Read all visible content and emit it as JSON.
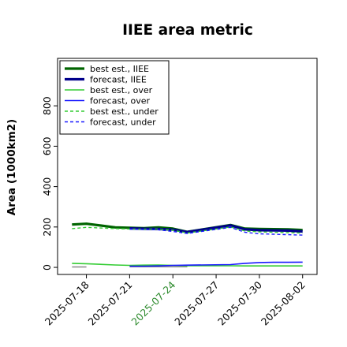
{
  "chart_data": {
    "type": "line",
    "title": "IIEE area metric",
    "ylabel": "Area (1000km2)",
    "xlabel": "",
    "ylim": [
      -35,
      1035
    ],
    "xlim": [
      "2025-07-16",
      "2025-08-03"
    ],
    "yticks": [
      0,
      200,
      400,
      600,
      800
    ],
    "ytick_labels": [
      "0",
      "200",
      "400",
      "600",
      "800"
    ],
    "xticks": [
      "2025-07-18",
      "2025-07-21",
      "2025-07-24",
      "2025-07-27",
      "2025-07-30",
      "2025-08-02"
    ],
    "xtick_labels": [
      "2025-07-18",
      "2025-07-21",
      "2025-07-24",
      "2025-07-27",
      "2025-07-30",
      "2025-08-02"
    ],
    "highlight_xtick": "2025-07-24",
    "highlight_color": "#2e8b2e",
    "grid": false,
    "legend_position": "top-left",
    "series": [
      {
        "name": "best est., IIEE",
        "color": "#006400",
        "width": 3.2,
        "dash": "",
        "x": [
          "2025-07-17",
          "2025-07-18",
          "2025-07-20",
          "2025-07-21",
          "2025-07-22",
          "2025-07-23",
          "2025-07-24",
          "2025-07-25",
          "2025-07-28",
          "2025-07-29",
          "2025-07-30",
          "2025-07-31",
          "2025-08-01",
          "2025-08-02"
        ],
        "y": [
          212,
          216,
          198,
          196,
          194,
          198,
          192,
          176,
          210,
          192,
          190,
          189,
          188,
          185
        ]
      },
      {
        "name": "forecast, IIEE",
        "color": "#00008b",
        "width": 3.2,
        "dash": "",
        "x": [
          "2025-07-21",
          "2025-07-22",
          "2025-07-23",
          "2025-07-24",
          "2025-07-25",
          "2025-07-28",
          "2025-07-29",
          "2025-07-30",
          "2025-07-31",
          "2025-08-01",
          "2025-08-02"
        ],
        "y": [
          193,
          191,
          190,
          187,
          175,
          208,
          188,
          184,
          183,
          182,
          178
        ]
      },
      {
        "name": "best est., over",
        "color": "#33cc33",
        "width": 1.6,
        "dash": "",
        "x": [
          "2025-07-17",
          "2025-07-18",
          "2025-07-20",
          "2025-07-21",
          "2025-07-22",
          "2025-07-23",
          "2025-07-24",
          "2025-07-25",
          "2025-07-28",
          "2025-07-29",
          "2025-07-30",
          "2025-07-31",
          "2025-08-01",
          "2025-08-02"
        ],
        "y": [
          20,
          18,
          12,
          10,
          11,
          12,
          10,
          8,
          8,
          7,
          7,
          7,
          7,
          7
        ]
      },
      {
        "name": "forecast, over",
        "color": "#1a1aff",
        "width": 1.6,
        "dash": "",
        "x": [
          "2025-07-21",
          "2025-07-22",
          "2025-07-23",
          "2025-07-24",
          "2025-07-25",
          "2025-07-28",
          "2025-07-29",
          "2025-07-30",
          "2025-07-31",
          "2025-08-01",
          "2025-08-02"
        ],
        "y": [
          6,
          6,
          7,
          10,
          11,
          14,
          20,
          24,
          25,
          25,
          26
        ]
      },
      {
        "name": "best est., under",
        "color": "#33cc33",
        "width": 1.4,
        "dash": "4,3",
        "x": [
          "2025-07-17",
          "2025-07-18",
          "2025-07-20",
          "2025-07-21",
          "2025-07-22",
          "2025-07-23",
          "2025-07-24",
          "2025-07-25",
          "2025-07-28",
          "2025-07-29",
          "2025-07-30",
          "2025-07-31",
          "2025-08-01",
          "2025-08-02"
        ],
        "y": [
          192,
          198,
          192,
          190,
          189,
          190,
          184,
          170,
          200,
          180,
          176,
          174,
          172,
          170
        ]
      },
      {
        "name": "forecast, under",
        "color": "#1a1aff",
        "width": 1.4,
        "dash": "4,3",
        "x": [
          "2025-07-21",
          "2025-07-22",
          "2025-07-23",
          "2025-07-24",
          "2025-07-25",
          "2025-07-28",
          "2025-07-29",
          "2025-07-30",
          "2025-07-31",
          "2025-08-01",
          "2025-08-02"
        ],
        "y": [
          190,
          188,
          186,
          178,
          168,
          198,
          174,
          166,
          164,
          162,
          160
        ]
      }
    ],
    "extra_series": [
      {
        "color": "#888888",
        "width": 1.4,
        "dash": "",
        "x": [
          "2025-07-17",
          "2025-07-18"
        ],
        "y": [
          2,
          2
        ]
      },
      {
        "color": "#888888",
        "width": 1.4,
        "dash": "",
        "x": [
          "2025-07-21",
          "2025-07-22",
          "2025-07-23",
          "2025-07-24",
          "2025-07-25"
        ],
        "y": [
          3,
          3,
          3,
          3,
          3
        ]
      }
    ]
  }
}
